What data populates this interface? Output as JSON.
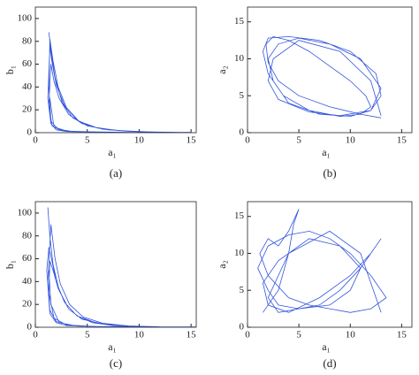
{
  "chart_data": [
    {
      "type": "line",
      "caption": "(a)",
      "xlabel": "a₁",
      "ylabel": "b₁",
      "color": "#3355dd",
      "xlim": [
        0,
        15.5
      ],
      "ylim": [
        0,
        110
      ],
      "xticks": [
        0,
        5,
        10,
        15
      ],
      "yticks": [
        0,
        20,
        40,
        60,
        80,
        100
      ],
      "x": [
        1.3,
        1.5,
        1.9,
        2.6,
        3.6,
        5,
        7,
        10,
        13,
        15,
        12,
        8,
        5,
        3,
        2,
        1.5,
        1.2,
        1.4,
        1.6,
        2,
        2.8,
        4,
        5.5,
        8,
        11,
        14,
        11,
        7,
        4,
        2.4,
        1.6,
        1.3,
        1.5,
        1.8,
        2.3,
        3.2,
        4.5,
        6.5,
        9,
        12,
        9,
        6,
        3.5,
        2.2,
        1.5,
        1.3,
        1.4,
        1.7,
        2.2,
        3,
        4.2,
        6,
        8.5,
        11,
        13.5,
        10,
        6,
        3,
        1.8,
        1.4
      ],
      "values": [
        88,
        72,
        48,
        26,
        13,
        6,
        2.5,
        0.9,
        0.3,
        0.2,
        0.2,
        0.3,
        0.5,
        1,
        2.5,
        8,
        30,
        75,
        62,
        42,
        24,
        11,
        5,
        1.8,
        0.6,
        0.2,
        0.2,
        0.4,
        0.8,
        2,
        6,
        25,
        60,
        45,
        30,
        16,
        8,
        3,
        1.2,
        0.4,
        0.3,
        0.6,
        1.2,
        3,
        10,
        40,
        82,
        63,
        40,
        22,
        10,
        4,
        1.5,
        0.5,
        0.2,
        0.2,
        0.5,
        1.5,
        5,
        30
      ]
    },
    {
      "type": "line",
      "caption": "(b)",
      "xlabel": "a₁",
      "ylabel": "a₂",
      "color": "#3355dd",
      "xlim": [
        0,
        16
      ],
      "ylim": [
        0,
        17
      ],
      "xticks": [
        0,
        5,
        10,
        15
      ],
      "yticks": [
        0,
        5,
        10,
        15
      ],
      "x": [
        13,
        11,
        8,
        5,
        3,
        2,
        1.8,
        2.5,
        4,
        6,
        8,
        10,
        11.5,
        12,
        11,
        9,
        6,
        3.5,
        2,
        1.5,
        2,
        4,
        7,
        10,
        12.5,
        13,
        12,
        10,
        7,
        4,
        2.5,
        2,
        3,
        5,
        8,
        11,
        13,
        12,
        9,
        6,
        3,
        2,
        2.5,
        5,
        9,
        12,
        13
      ],
      "values": [
        2,
        2.5,
        3.5,
        5,
        7,
        9.5,
        12,
        13,
        12.5,
        11,
        9,
        7,
        5,
        3.5,
        2.5,
        2.2,
        3,
        5,
        8,
        11,
        12.8,
        13,
        12.5,
        11,
        8,
        5,
        3,
        2.2,
        2.5,
        4,
        7,
        10,
        12,
        12.8,
        12,
        10,
        6,
        3,
        2.3,
        2.8,
        4.5,
        7,
        10,
        12.5,
        11,
        7,
        2.3
      ]
    },
    {
      "type": "line",
      "caption": "(c)",
      "xlabel": "a₁",
      "ylabel": "b₁",
      "color": "#3355dd",
      "xlim": [
        0,
        15.5
      ],
      "ylim": [
        0,
        110
      ],
      "xticks": [
        0,
        5,
        10,
        15
      ],
      "yticks": [
        0,
        20,
        40,
        60,
        80,
        100
      ],
      "x": [
        1.2,
        1.4,
        1.7,
        2.3,
        3.2,
        4.5,
        6.5,
        9,
        12,
        15.5,
        12,
        8,
        5,
        3,
        2,
        1.4,
        1.1,
        1.3,
        1.6,
        2,
        2.8,
        4,
        5.8,
        8,
        11,
        13,
        10,
        6,
        3.5,
        2,
        1.4,
        1.2,
        1.5,
        1.9,
        2.4,
        3.3,
        4.6,
        6.5,
        9,
        12,
        9,
        5.5,
        3,
        1.8,
        1.3,
        1.4,
        1.7,
        2.2,
        3,
        4,
        5.5,
        7.5,
        10,
        7,
        4,
        2.3,
        1.5,
        1.3
      ],
      "values": [
        105,
        80,
        55,
        32,
        16,
        7,
        3,
        1,
        0.4,
        0.2,
        0.2,
        0.4,
        0.8,
        1.5,
        4,
        12,
        50,
        70,
        58,
        40,
        22,
        10,
        4,
        1.5,
        0.5,
        0.3,
        0.3,
        0.7,
        1.5,
        5,
        15,
        40,
        90,
        60,
        38,
        20,
        9,
        3.5,
        1.2,
        0.4,
        0.3,
        0.8,
        2,
        8,
        30,
        58,
        50,
        34,
        20,
        10,
        4,
        1.5,
        0.6,
        0.5,
        1,
        4,
        20,
        50
      ]
    },
    {
      "type": "line",
      "caption": "(d)",
      "xlabel": "a₁",
      "ylabel": "a₂",
      "color": "#3355dd",
      "xlim": [
        0,
        16
      ],
      "ylim": [
        0,
        17
      ],
      "xticks": [
        0,
        5,
        10,
        15
      ],
      "yticks": [
        0,
        5,
        10,
        15
      ],
      "x": [
        1.5,
        3,
        4,
        4.5,
        5,
        4,
        3,
        2,
        1.2,
        2,
        4,
        6,
        8,
        10,
        12,
        13.5,
        12,
        10,
        8,
        6,
        4,
        2,
        1,
        2,
        3,
        5,
        7,
        9,
        11,
        13,
        12,
        10,
        7,
        4,
        2,
        1.5,
        3,
        6,
        9,
        11,
        10,
        8,
        5,
        3,
        2,
        4,
        8,
        11,
        13
      ],
      "values": [
        2,
        5,
        10,
        14,
        16,
        13,
        11,
        12,
        10,
        7,
        4,
        3,
        2.5,
        2,
        2.5,
        4,
        7,
        10,
        12,
        13,
        12.5,
        11,
        8,
        5,
        3,
        2.5,
        3,
        5,
        8,
        12,
        10,
        7,
        4,
        2,
        3,
        6,
        9,
        12,
        11,
        8,
        5,
        3,
        2.5,
        2,
        4,
        10,
        13,
        10,
        2
      ]
    }
  ]
}
